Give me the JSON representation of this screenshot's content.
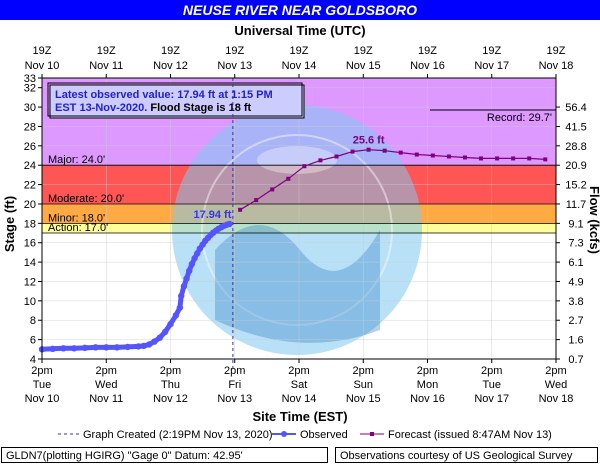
{
  "page": {
    "title": "NEUSE RIVER NEAR GOLDSBORO",
    "footer_left": "GLDN7(plotting HGIRG) \"Gage 0\" Datum: 42.95'",
    "footer_right": "Observations courtesy of US Geological Survey",
    "latest_line1": "Latest observed value: 17.94 ft at 1:15 PM",
    "latest_line2_a": "EST 13-Nov-2020. ",
    "latest_line2_b": "Flood Stage is 18 ft",
    "record_label": "Record: 29.7'",
    "obs_peak_label": "17.94 ft",
    "fcst_peak_label": "25.6 ft",
    "legend_created": "Graph Created (2:19PM Nov 13, 2020)",
    "legend_observed": "Observed",
    "legend_forecast": "Forecast (issued 8:47AM Nov 13)"
  },
  "chart_data": {
    "type": "line",
    "xlabel_top": "Universal Time (UTC)",
    "xlabel_bottom": "Site Time (EST)",
    "ylabel_left": "Stage (ft)",
    "ylabel_right": "Flow (kcfs)",
    "ylim": [
      4,
      33
    ],
    "xlim_hours_from_nov10_2pm": [
      0,
      192
    ],
    "y_ticks": [
      4,
      6,
      8,
      10,
      12,
      14,
      16,
      18,
      20,
      22,
      24,
      26,
      28,
      30,
      32,
      33
    ],
    "flow_ticks": [
      {
        "stage": 4,
        "label": "0.7"
      },
      {
        "stage": 6,
        "label": "1.6"
      },
      {
        "stage": 8,
        "label": "2.7"
      },
      {
        "stage": 10,
        "label": "3.8"
      },
      {
        "stage": 12,
        "label": "4.9"
      },
      {
        "stage": 14,
        "label": "6.1"
      },
      {
        "stage": 16,
        "label": "7.3"
      },
      {
        "stage": 18,
        "label": "9.1"
      },
      {
        "stage": 20,
        "label": "11.7"
      },
      {
        "stage": 22,
        "label": "15.2"
      },
      {
        "stage": 24,
        "label": "20.9"
      },
      {
        "stage": 26,
        "label": "28.8"
      },
      {
        "stage": 28,
        "label": "41.5"
      },
      {
        "stage": 30,
        "label": "56.4"
      }
    ],
    "utc_ticks": [
      {
        "l1": "19Z",
        "l2": "Nov 10"
      },
      {
        "l1": "19Z",
        "l2": "Nov 11"
      },
      {
        "l1": "19Z",
        "l2": "Nov 12"
      },
      {
        "l1": "19Z",
        "l2": "Nov 13"
      },
      {
        "l1": "19Z",
        "l2": "Nov 14"
      },
      {
        "l1": "19Z",
        "l2": "Nov 15"
      },
      {
        "l1": "19Z",
        "l2": "Nov 16"
      },
      {
        "l1": "19Z",
        "l2": "Nov 17"
      },
      {
        "l1": "19Z",
        "l2": "Nov 18"
      }
    ],
    "local_ticks": [
      {
        "l1": "2pm",
        "l2": "Tue",
        "l3": "Nov 10"
      },
      {
        "l1": "2pm",
        "l2": "Wed",
        "l3": "Nov 11"
      },
      {
        "l1": "2pm",
        "l2": "Thu",
        "l3": "Nov 12"
      },
      {
        "l1": "2pm",
        "l2": "Fri",
        "l3": "Nov 13"
      },
      {
        "l1": "2pm",
        "l2": "Sat",
        "l3": "Nov 14"
      },
      {
        "l1": "2pm",
        "l2": "Sun",
        "l3": "Nov 15"
      },
      {
        "l1": "2pm",
        "l2": "Mon",
        "l3": "Nov 16"
      },
      {
        "l1": "2pm",
        "l2": "Tue",
        "l3": "Nov 17"
      },
      {
        "l1": "2pm",
        "l2": "Wed",
        "l3": "Nov 18"
      }
    ],
    "bands": [
      {
        "name": "Action",
        "from": 17,
        "to": 18,
        "color": "#ffff99",
        "label": "Action: 17.0'"
      },
      {
        "name": "Minor",
        "from": 18,
        "to": 20,
        "color": "#ffaa44",
        "label": "Minor: 18.0'"
      },
      {
        "name": "Moderate",
        "from": 20,
        "to": 24,
        "color": "#ff5555",
        "label": "Moderate: 20.0'"
      },
      {
        "name": "Major",
        "from": 24,
        "to": 33,
        "color": "#dd99ff",
        "label": "Major: 24.0'"
      }
    ],
    "record_stage": 29.7,
    "graph_created_hour": 71.3,
    "series": [
      {
        "name": "Observed",
        "color": "#5555ff",
        "points": [
          [
            0,
            5.0
          ],
          [
            4,
            5.05
          ],
          [
            8,
            5.1
          ],
          [
            12,
            5.1
          ],
          [
            16,
            5.15
          ],
          [
            20,
            5.2
          ],
          [
            24,
            5.2
          ],
          [
            28,
            5.2
          ],
          [
            32,
            5.25
          ],
          [
            36,
            5.3
          ],
          [
            38,
            5.35
          ],
          [
            40,
            5.5
          ],
          [
            42,
            5.8
          ],
          [
            44,
            6.2
          ],
          [
            46,
            6.8
          ],
          [
            48,
            7.6
          ],
          [
            50,
            8.5
          ],
          [
            51.5,
            9.3
          ],
          [
            52,
            10.5
          ],
          [
            53,
            11.5
          ],
          [
            54,
            12.3
          ],
          [
            55,
            13.1
          ],
          [
            56,
            13.8
          ],
          [
            57,
            14.4
          ],
          [
            58,
            14.9
          ],
          [
            59,
            15.4
          ],
          [
            60,
            15.8
          ],
          [
            61,
            16.2
          ],
          [
            62,
            16.5
          ],
          [
            63,
            16.8
          ],
          [
            64,
            17.05
          ],
          [
            65,
            17.25
          ],
          [
            66,
            17.45
          ],
          [
            67,
            17.6
          ],
          [
            68,
            17.75
          ],
          [
            69,
            17.85
          ],
          [
            70,
            17.94
          ]
        ]
      },
      {
        "name": "Forecast",
        "color": "#800080",
        "points": [
          [
            74,
            19.4
          ],
          [
            80,
            20.4
          ],
          [
            86,
            21.5
          ],
          [
            92,
            22.6
          ],
          [
            98,
            23.9
          ],
          [
            104,
            24.5
          ],
          [
            110,
            24.9
          ],
          [
            116,
            25.4
          ],
          [
            122,
            25.6
          ],
          [
            128,
            25.5
          ],
          [
            134,
            25.3
          ],
          [
            140,
            25.1
          ],
          [
            146,
            25.0
          ],
          [
            152,
            24.9
          ],
          [
            158,
            24.8
          ],
          [
            164,
            24.7
          ],
          [
            170,
            24.7
          ],
          [
            176,
            24.7
          ],
          [
            182,
            24.7
          ],
          [
            188,
            24.6
          ]
        ]
      }
    ],
    "observed_peak": {
      "x": 70,
      "y": 17.94,
      "label": "17.94 ft"
    },
    "forecast_peak": {
      "x": 122,
      "y": 25.6,
      "label": "25.6 ft"
    }
  }
}
